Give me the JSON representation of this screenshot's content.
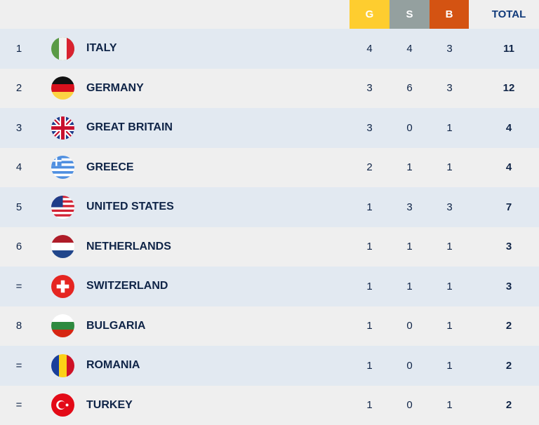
{
  "header": {
    "gold": "G",
    "silver": "S",
    "bronze": "B",
    "total": "TOTAL"
  },
  "colors": {
    "gold": "#fecd2f",
    "silver": "#94a09f",
    "bronze": "#d45312"
  },
  "rows": [
    {
      "rank": "1",
      "country": "ITALY",
      "flag": "italy-flag-icon",
      "g": "4",
      "s": "4",
      "b": "3",
      "total": "11"
    },
    {
      "rank": "2",
      "country": "GERMANY",
      "flag": "germany-flag-icon",
      "g": "3",
      "s": "6",
      "b": "3",
      "total": "12"
    },
    {
      "rank": "3",
      "country": "GREAT BRITAIN",
      "flag": "great-britain-flag-icon",
      "g": "3",
      "s": "0",
      "b": "1",
      "total": "4"
    },
    {
      "rank": "4",
      "country": "GREECE",
      "flag": "greece-flag-icon",
      "g": "2",
      "s": "1",
      "b": "1",
      "total": "4"
    },
    {
      "rank": "5",
      "country": "UNITED STATES",
      "flag": "united-states-flag-icon",
      "g": "1",
      "s": "3",
      "b": "3",
      "total": "7"
    },
    {
      "rank": "6",
      "country": "NETHERLANDS",
      "flag": "netherlands-flag-icon",
      "g": "1",
      "s": "1",
      "b": "1",
      "total": "3"
    },
    {
      "rank": "=",
      "country": "SWITZERLAND",
      "flag": "switzerland-flag-icon",
      "g": "1",
      "s": "1",
      "b": "1",
      "total": "3"
    },
    {
      "rank": "8",
      "country": "BULGARIA",
      "flag": "bulgaria-flag-icon",
      "g": "1",
      "s": "0",
      "b": "1",
      "total": "2"
    },
    {
      "rank": "=",
      "country": "ROMANIA",
      "flag": "romania-flag-icon",
      "g": "1",
      "s": "0",
      "b": "1",
      "total": "2"
    },
    {
      "rank": "=",
      "country": "TURKEY",
      "flag": "turkey-flag-icon",
      "g": "1",
      "s": "0",
      "b": "1",
      "total": "2"
    }
  ]
}
